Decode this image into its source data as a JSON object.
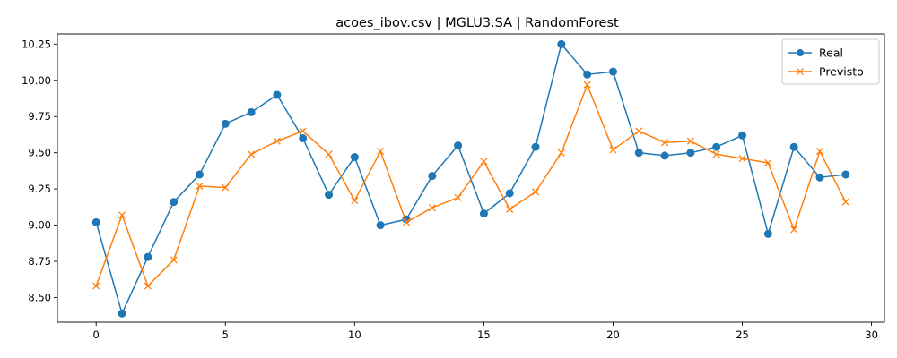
{
  "chart_data": {
    "type": "line",
    "title": "acoes_ibov.csv | MGLU3.SA | RandomForest",
    "xlabel": "",
    "ylabel": "",
    "xlim": [
      -1.5,
      30.5
    ],
    "ylim": [
      8.33,
      10.32
    ],
    "x_ticks": [
      0,
      5,
      10,
      15,
      20,
      25,
      30
    ],
    "y_ticks": [
      8.5,
      8.75,
      9.0,
      9.25,
      9.5,
      9.75,
      10.0,
      10.25
    ],
    "x_tick_labels": [
      "0",
      "5",
      "10",
      "15",
      "20",
      "25",
      "30"
    ],
    "y_tick_labels": [
      "8.50",
      "8.75",
      "9.00",
      "9.25",
      "9.50",
      "9.75",
      "10.00",
      "10.25"
    ],
    "grid": false,
    "legend_position": "top-right",
    "x": [
      0,
      1,
      2,
      3,
      4,
      5,
      6,
      7,
      8,
      9,
      10,
      11,
      12,
      13,
      14,
      15,
      16,
      17,
      18,
      19,
      20,
      21,
      22,
      23,
      24,
      25,
      26,
      27,
      28,
      29
    ],
    "series": [
      {
        "name": "Real",
        "color": "#1f77b4",
        "marker": "circle",
        "values": [
          9.02,
          8.39,
          8.78,
          9.16,
          9.35,
          9.7,
          9.78,
          9.9,
          9.6,
          9.21,
          9.47,
          9.0,
          9.04,
          9.34,
          9.55,
          9.08,
          9.22,
          9.54,
          10.25,
          10.04,
          10.06,
          9.5,
          9.48,
          9.5,
          9.54,
          9.62,
          8.94,
          9.54,
          9.33,
          9.35
        ]
      },
      {
        "name": "Previsto",
        "color": "#ff7f0e",
        "marker": "x",
        "values": [
          8.58,
          9.07,
          8.58,
          8.76,
          9.27,
          9.26,
          9.49,
          9.58,
          9.65,
          9.49,
          9.17,
          9.51,
          9.02,
          9.12,
          9.19,
          9.44,
          9.11,
          9.23,
          9.5,
          9.97,
          9.52,
          9.65,
          9.57,
          9.58,
          9.49,
          9.46,
          9.43,
          8.97,
          9.51,
          9.16
        ]
      }
    ]
  }
}
